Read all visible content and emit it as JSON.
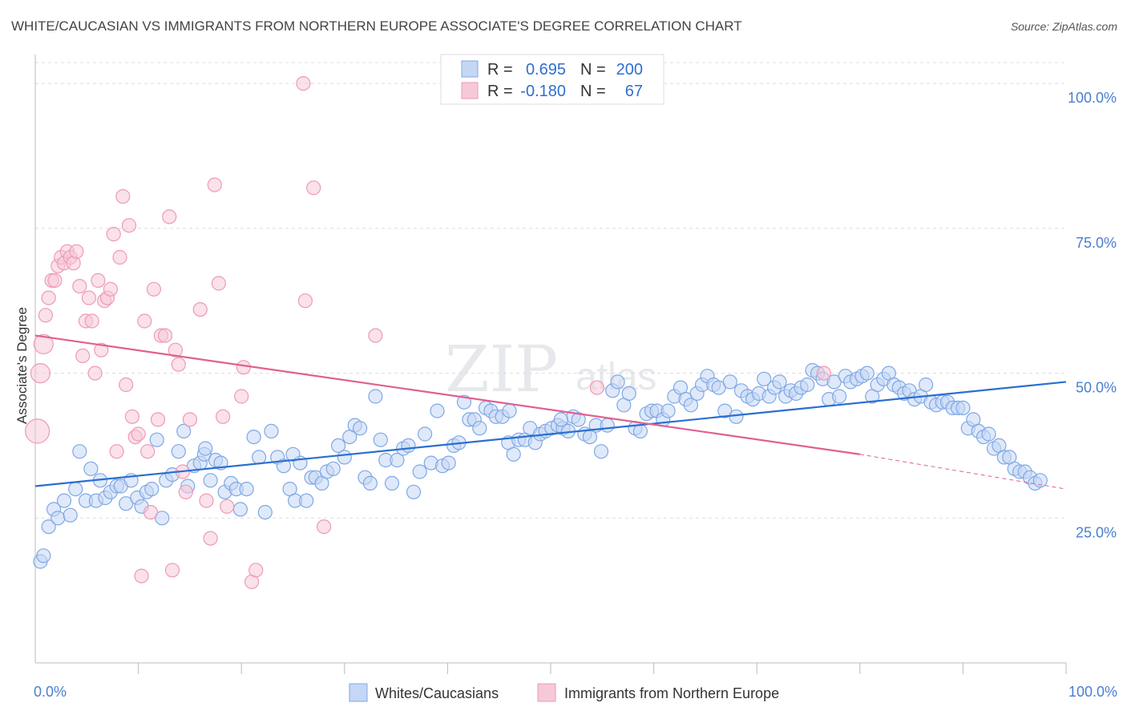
{
  "chart_data": {
    "type": "scatter",
    "title": "WHITE/CAUCASIAN VS IMMIGRANTS FROM NORTHERN EUROPE ASSOCIATE'S DEGREE CORRELATION CHART",
    "source": "Source: ZipAtlas.com",
    "watermark": "ZIPatlas",
    "ylabel": "Associate's Degree",
    "xlim": [
      0,
      100
    ],
    "ylim": [
      0,
      105
    ],
    "x_tick_labels": [
      "0.0%",
      "100.0%"
    ],
    "y_ticks": [
      25,
      50,
      75,
      100
    ],
    "y_tick_labels": [
      "25.0%",
      "50.0%",
      "75.0%",
      "100.0%"
    ],
    "legend": {
      "rows": [
        {
          "r_label": "R =",
          "r_value": "0.695",
          "n_label": "N =",
          "n_value": "200"
        },
        {
          "r_label": "R =",
          "r_value": "-0.180",
          "n_label": "N =",
          "n_value": "67"
        }
      ]
    },
    "series": [
      {
        "name": "Whites/Caucasians",
        "color": "#7fa8e6",
        "fill": "#c4d7f4",
        "trend_color": "#2a6fd0",
        "trend": {
          "x0": 0,
          "y0": 30.5,
          "x1": 100,
          "y1": 48.5
        },
        "points": [
          [
            0.5,
            17.5
          ],
          [
            0.8,
            18.5
          ],
          [
            1.3,
            23.5
          ],
          [
            1.8,
            26.5
          ],
          [
            2.2,
            25
          ],
          [
            2.8,
            28
          ],
          [
            3.4,
            25.5
          ],
          [
            3.9,
            30
          ],
          [
            4.3,
            36.5
          ],
          [
            4.9,
            28
          ],
          [
            5.4,
            33.5
          ],
          [
            5.9,
            28
          ],
          [
            6.3,
            31.5
          ],
          [
            6.8,
            28.5
          ],
          [
            7.3,
            29.5
          ],
          [
            7.9,
            30.5
          ],
          [
            8.3,
            30.5
          ],
          [
            8.8,
            27.5
          ],
          [
            9.3,
            31.5
          ],
          [
            9.9,
            28.5
          ],
          [
            10.3,
            27
          ],
          [
            10.8,
            29.5
          ],
          [
            11.3,
            30
          ],
          [
            11.8,
            38.5
          ],
          [
            12.3,
            25
          ],
          [
            12.7,
            31.5
          ],
          [
            13.3,
            32.5
          ],
          [
            13.9,
            36.5
          ],
          [
            14.4,
            40
          ],
          [
            14.8,
            30.5
          ],
          [
            15.4,
            34
          ],
          [
            16,
            34.5
          ],
          [
            16.4,
            36
          ],
          [
            17,
            31.5
          ],
          [
            17.5,
            35
          ],
          [
            18,
            34.5
          ],
          [
            18.4,
            29.5
          ],
          [
            19,
            31
          ],
          [
            19.5,
            30
          ],
          [
            19.9,
            26.5
          ],
          [
            20.5,
            30
          ],
          [
            21.2,
            39
          ],
          [
            21.7,
            35.5
          ],
          [
            22.3,
            26
          ],
          [
            22.9,
            40
          ],
          [
            23.5,
            35.5
          ],
          [
            24.1,
            34
          ],
          [
            24.7,
            30
          ],
          [
            25.2,
            28
          ],
          [
            25.7,
            34.5
          ],
          [
            26.3,
            28
          ],
          [
            26.8,
            32
          ],
          [
            27.2,
            32
          ],
          [
            27.8,
            31
          ],
          [
            28.3,
            33
          ],
          [
            28.9,
            33.5
          ],
          [
            29.4,
            37.5
          ],
          [
            30,
            35.5
          ],
          [
            30.5,
            39
          ],
          [
            31,
            41
          ],
          [
            31.5,
            40.5
          ],
          [
            32,
            32
          ],
          [
            32.5,
            31
          ],
          [
            33,
            46
          ],
          [
            33.5,
            38.5
          ],
          [
            34,
            35
          ],
          [
            34.6,
            31
          ],
          [
            35.1,
            35
          ],
          [
            35.7,
            37
          ],
          [
            36.2,
            37.5
          ],
          [
            36.7,
            29.5
          ],
          [
            37.3,
            33
          ],
          [
            37.8,
            39.5
          ],
          [
            38.4,
            34.5
          ],
          [
            39,
            43.5
          ],
          [
            39.5,
            34
          ],
          [
            40.1,
            34.5
          ],
          [
            40.6,
            37.5
          ],
          [
            41.1,
            38
          ],
          [
            41.6,
            45
          ],
          [
            42.1,
            42
          ],
          [
            42.6,
            42
          ],
          [
            43.1,
            40.5
          ],
          [
            43.7,
            44
          ],
          [
            44.2,
            43.5
          ],
          [
            44.7,
            42.5
          ],
          [
            45.3,
            42.5
          ],
          [
            45.9,
            38
          ],
          [
            46.4,
            36
          ],
          [
            46.9,
            38.5
          ],
          [
            47.5,
            38.5
          ],
          [
            48,
            40.5
          ],
          [
            48.5,
            38
          ],
          [
            49,
            39.5
          ],
          [
            49.5,
            40
          ],
          [
            50.1,
            40.5
          ],
          [
            50.7,
            41
          ],
          [
            51.2,
            40.5
          ],
          [
            51.7,
            40
          ],
          [
            52.2,
            42.5
          ],
          [
            52.7,
            42
          ],
          [
            53.3,
            39.5
          ],
          [
            53.8,
            39
          ],
          [
            54.4,
            41
          ],
          [
            54.9,
            36.5
          ],
          [
            55.5,
            41
          ],
          [
            56,
            47
          ],
          [
            56.5,
            48.5
          ],
          [
            57.1,
            44.5
          ],
          [
            57.6,
            46.5
          ],
          [
            58.2,
            40.5
          ],
          [
            58.7,
            40
          ],
          [
            59.3,
            43
          ],
          [
            59.8,
            43.5
          ],
          [
            60.3,
            43.5
          ],
          [
            60.9,
            42
          ],
          [
            61.4,
            43.5
          ],
          [
            62,
            46
          ],
          [
            62.6,
            47.5
          ],
          [
            63.1,
            45.5
          ],
          [
            63.6,
            44.5
          ],
          [
            64.2,
            46.5
          ],
          [
            64.7,
            48
          ],
          [
            65.2,
            49.5
          ],
          [
            65.8,
            48
          ],
          [
            66.3,
            47.5
          ],
          [
            66.9,
            43.5
          ],
          [
            67.4,
            48.5
          ],
          [
            68,
            42.5
          ],
          [
            68.5,
            47
          ],
          [
            69.1,
            46
          ],
          [
            69.6,
            45.5
          ],
          [
            70.2,
            46.5
          ],
          [
            70.7,
            49
          ],
          [
            71.2,
            46
          ],
          [
            71.7,
            47.5
          ],
          [
            72.2,
            48.5
          ],
          [
            72.8,
            46
          ],
          [
            73.3,
            47
          ],
          [
            73.8,
            46.5
          ],
          [
            74.3,
            47.5
          ],
          [
            74.9,
            48
          ],
          [
            75.4,
            50.5
          ],
          [
            75.9,
            50
          ],
          [
            76.4,
            49
          ],
          [
            77,
            45.5
          ],
          [
            77.5,
            48.5
          ],
          [
            78,
            46
          ],
          [
            78.6,
            49.5
          ],
          [
            79.1,
            48.5
          ],
          [
            79.7,
            49
          ],
          [
            80.2,
            49.5
          ],
          [
            80.7,
            50
          ],
          [
            81.2,
            46
          ],
          [
            81.7,
            48
          ],
          [
            82.3,
            49
          ],
          [
            82.8,
            50
          ],
          [
            83.3,
            48
          ],
          [
            83.8,
            47.5
          ],
          [
            84.3,
            46.5
          ],
          [
            84.8,
            47
          ],
          [
            85.3,
            45.5
          ],
          [
            85.9,
            46
          ],
          [
            86.4,
            48
          ],
          [
            86.9,
            45
          ],
          [
            87.4,
            44.5
          ],
          [
            88,
            45
          ],
          [
            88.5,
            45
          ],
          [
            89,
            44
          ],
          [
            89.5,
            44
          ],
          [
            90,
            44
          ],
          [
            90.5,
            40.5
          ],
          [
            91,
            42
          ],
          [
            91.5,
            40
          ],
          [
            92,
            39
          ],
          [
            92.5,
            39.5
          ],
          [
            93,
            37
          ],
          [
            93.5,
            37.5
          ],
          [
            94,
            35.5
          ],
          [
            94.5,
            35.5
          ],
          [
            95,
            33.5
          ],
          [
            95.5,
            33
          ],
          [
            96,
            33
          ],
          [
            96.5,
            32
          ],
          [
            97,
            31
          ],
          [
            97.5,
            31.5
          ],
          [
            46,
            43.5
          ],
          [
            51,
            42
          ],
          [
            25,
            36
          ],
          [
            16.5,
            37
          ]
        ]
      },
      {
        "name": "Immigrants from Northern Europe",
        "color": "#ee9ab5",
        "fill": "#f6c9d8",
        "trend_color": "#e06090",
        "trend": {
          "x0": 0,
          "y0": 56.5,
          "x1": 80,
          "y1": 36
        },
        "trend_dashed": {
          "x0": 80,
          "y0": 36,
          "x1": 100,
          "y1": 30
        },
        "points": [
          [
            0.2,
            40
          ],
          [
            0.5,
            50
          ],
          [
            0.8,
            55
          ],
          [
            1,
            60
          ],
          [
            1.3,
            63
          ],
          [
            1.6,
            66
          ],
          [
            1.9,
            66
          ],
          [
            2.2,
            68.5
          ],
          [
            2.5,
            70
          ],
          [
            2.8,
            69
          ],
          [
            3.1,
            71
          ],
          [
            3.4,
            70
          ],
          [
            3.7,
            69
          ],
          [
            4,
            71
          ],
          [
            4.3,
            65
          ],
          [
            4.6,
            53
          ],
          [
            4.9,
            59
          ],
          [
            5.2,
            63
          ],
          [
            5.5,
            59
          ],
          [
            5.8,
            50
          ],
          [
            6.1,
            66
          ],
          [
            6.4,
            54
          ],
          [
            6.7,
            62.5
          ],
          [
            7,
            63
          ],
          [
            7.3,
            64.5
          ],
          [
            7.6,
            74
          ],
          [
            7.9,
            36.5
          ],
          [
            8.2,
            70
          ],
          [
            8.5,
            80.5
          ],
          [
            8.8,
            48
          ],
          [
            9.1,
            75.5
          ],
          [
            9.4,
            42.5
          ],
          [
            9.7,
            39
          ],
          [
            10,
            39.5
          ],
          [
            10.3,
            15
          ],
          [
            10.6,
            59
          ],
          [
            10.9,
            36.5
          ],
          [
            11.2,
            26
          ],
          [
            11.5,
            64.5
          ],
          [
            11.9,
            42
          ],
          [
            12.2,
            56.5
          ],
          [
            12.6,
            56.5
          ],
          [
            13,
            77
          ],
          [
            13.3,
            16
          ],
          [
            13.6,
            54
          ],
          [
            13.9,
            51.5
          ],
          [
            14.3,
            33
          ],
          [
            14.6,
            29.5
          ],
          [
            15,
            42
          ],
          [
            16,
            61
          ],
          [
            16.6,
            28
          ],
          [
            17,
            21.5
          ],
          [
            17.4,
            82.5
          ],
          [
            17.8,
            65.5
          ],
          [
            18.2,
            42.5
          ],
          [
            18.6,
            27
          ],
          [
            20,
            46
          ],
          [
            20.2,
            51
          ],
          [
            21,
            14
          ],
          [
            21.4,
            16
          ],
          [
            26,
            100
          ],
          [
            26.2,
            62.5
          ],
          [
            27,
            82
          ],
          [
            28,
            23.5
          ],
          [
            33,
            56.5
          ],
          [
            54.5,
            47.5
          ],
          [
            76.5,
            50
          ]
        ]
      }
    ]
  }
}
